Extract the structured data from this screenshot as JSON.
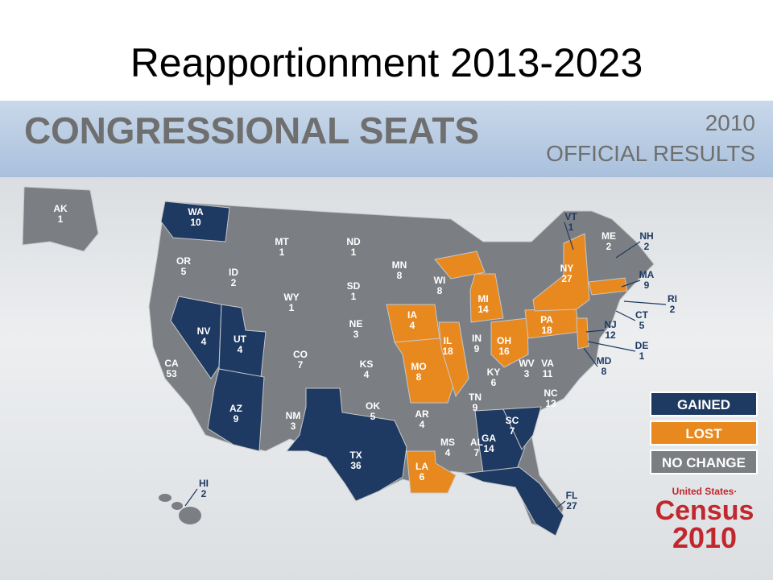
{
  "title": "Reapportionment 2013-2023",
  "header": {
    "title": "CONGRESSIONAL SEATS",
    "year": "2010",
    "subtitle": "OFFICIAL RESULTS"
  },
  "legend": [
    {
      "label": "GAINED",
      "color": "#1e3a62",
      "states": [
        {
          "abbr": "WA",
          "seats": 10
        },
        {
          "abbr": "NV",
          "seats": 4
        },
        {
          "abbr": "UT",
          "seats": 4
        },
        {
          "abbr": "AZ",
          "seats": 9
        },
        {
          "abbr": "TX",
          "seats": 36
        },
        {
          "abbr": "GA",
          "seats": 14
        },
        {
          "abbr": "SC",
          "seats": 7
        },
        {
          "abbr": "FL",
          "seats": 27
        }
      ]
    },
    {
      "label": "LOST",
      "color": "#e8891f",
      "states": [
        {
          "abbr": "IA",
          "seats": 4
        },
        {
          "abbr": "MO",
          "seats": 8
        },
        {
          "abbr": "IL",
          "seats": 18
        },
        {
          "abbr": "MI",
          "seats": 14
        },
        {
          "abbr": "OH",
          "seats": 16
        },
        {
          "abbr": "PA",
          "seats": 18
        },
        {
          "abbr": "NY",
          "seats": 27
        },
        {
          "abbr": "NJ",
          "seats": 12
        },
        {
          "abbr": "MA",
          "seats": 9
        },
        {
          "abbr": "LA",
          "seats": 6
        }
      ]
    },
    {
      "label": "NO CHANGE",
      "color": "#7b7e82",
      "states": [
        {
          "abbr": "AK",
          "seats": 1
        },
        {
          "abbr": "HI",
          "seats": 2
        },
        {
          "abbr": "OR",
          "seats": 5
        },
        {
          "abbr": "CA",
          "seats": 53
        },
        {
          "abbr": "ID",
          "seats": 2
        },
        {
          "abbr": "MT",
          "seats": 1
        },
        {
          "abbr": "WY",
          "seats": 1
        },
        {
          "abbr": "CO",
          "seats": 7
        },
        {
          "abbr": "NM",
          "seats": 3
        },
        {
          "abbr": "ND",
          "seats": 1
        },
        {
          "abbr": "SD",
          "seats": 1
        },
        {
          "abbr": "NE",
          "seats": 3
        },
        {
          "abbr": "KS",
          "seats": 4
        },
        {
          "abbr": "OK",
          "seats": 5
        },
        {
          "abbr": "MN",
          "seats": 8
        },
        {
          "abbr": "WI",
          "seats": 8
        },
        {
          "abbr": "AR",
          "seats": 4
        },
        {
          "abbr": "MS",
          "seats": 4
        },
        {
          "abbr": "AL",
          "seats": 7
        },
        {
          "abbr": "TN",
          "seats": 9
        },
        {
          "abbr": "KY",
          "seats": 6
        },
        {
          "abbr": "IN",
          "seats": 9
        },
        {
          "abbr": "WV",
          "seats": 3
        },
        {
          "abbr": "VA",
          "seats": 11
        },
        {
          "abbr": "NC",
          "seats": 13
        },
        {
          "abbr": "MD",
          "seats": 8
        },
        {
          "abbr": "DE",
          "seats": 1
        },
        {
          "abbr": "CT",
          "seats": 5
        },
        {
          "abbr": "RI",
          "seats": 2
        },
        {
          "abbr": "NH",
          "seats": 2
        },
        {
          "abbr": "ME",
          "seats": 2
        },
        {
          "abbr": "VT",
          "seats": 1
        }
      ]
    }
  ],
  "logo": {
    "agency": "United States·",
    "name": "Census",
    "year": "2010"
  }
}
